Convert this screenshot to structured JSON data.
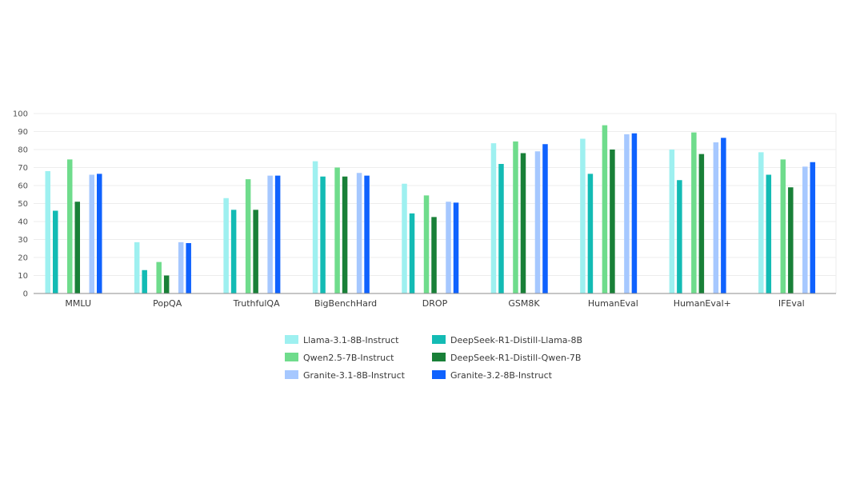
{
  "chart_data": {
    "type": "bar",
    "title": "",
    "xlabel": "",
    "ylabel": "",
    "ylim": [
      0,
      100
    ],
    "yticks": [
      0,
      10,
      20,
      30,
      40,
      50,
      60,
      70,
      80,
      90,
      100
    ],
    "grid": true,
    "legend_position": "bottom-center",
    "categories": [
      "MMLU",
      "PopQA",
      "TruthfulQA",
      "BigBenchHard",
      "DROP",
      "GSM8K",
      "HumanEval",
      "HumanEval+",
      "IFEval"
    ],
    "series": [
      {
        "name": "Llama-3.1-8B-Instruct",
        "color": "#9ef0f0",
        "values": [
          68,
          28.5,
          53,
          73.5,
          61,
          83.5,
          86,
          80,
          78.5
        ]
      },
      {
        "name": "DeepSeek-R1-Distill-Llama-8B",
        "color": "#13bbb4",
        "values": [
          46,
          13,
          46.5,
          65,
          44.5,
          72,
          66.5,
          63,
          66
        ]
      },
      {
        "name": "Qwen2.5-7B-Instruct",
        "color": "#6fdc8c",
        "values": [
          74.5,
          17.5,
          63.5,
          70,
          54.5,
          84.5,
          93.5,
          89.5,
          74.5
        ]
      },
      {
        "name": "DeepSeek-R1-Distill-Qwen-7B",
        "color": "#198038",
        "values": [
          51,
          10,
          46.5,
          65,
          42.5,
          78,
          80,
          77.5,
          59
        ]
      },
      {
        "name": "Granite-3.1-8B-Instruct",
        "color": "#a6c8ff",
        "values": [
          66,
          28.5,
          65.5,
          67,
          51,
          79,
          88.5,
          84,
          70.5
        ]
      },
      {
        "name": "Granite-3.2-8B-Instruct",
        "color": "#0f62fe",
        "values": [
          66.5,
          28,
          65.5,
          65.5,
          50.5,
          83,
          89,
          86.5,
          73
        ]
      }
    ]
  }
}
